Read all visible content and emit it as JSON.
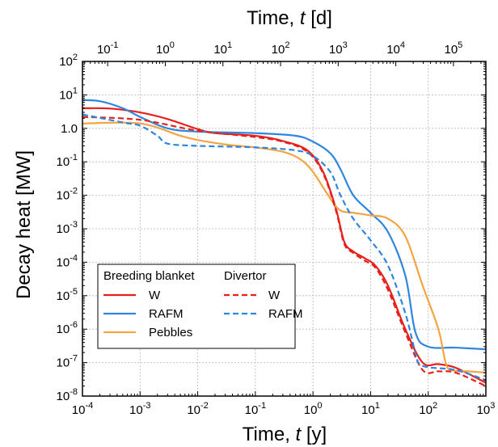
{
  "chart_data": {
    "type": "line",
    "xlabel": "Time, t [y]",
    "xlabel_prefix": "Time, ",
    "xlabel_var": "t",
    "xlabel_unit": " [y]",
    "x2label": "Time, t [d]",
    "x2label_prefix": "Time, ",
    "x2label_var": "t",
    "x2label_unit": " [d]",
    "ylabel": "Decay heat [MW]",
    "xscale": "log",
    "yscale": "log",
    "xlim": [
      0.0001,
      1000
    ],
    "ylim": [
      1e-08,
      100
    ],
    "grid": true,
    "legend_placement": "lower-left",
    "x_ticks": [
      {
        "value": 0.0001,
        "base": "10",
        "exp": "-4"
      },
      {
        "value": 0.001,
        "base": "10",
        "exp": "-3"
      },
      {
        "value": 0.01,
        "base": "10",
        "exp": "-2"
      },
      {
        "value": 0.1,
        "base": "10",
        "exp": "-1"
      },
      {
        "value": 1,
        "base": "10",
        "exp": "0"
      },
      {
        "value": 10,
        "base": "10",
        "exp": "1"
      },
      {
        "value": 100,
        "base": "10",
        "exp": "2"
      },
      {
        "value": 1000,
        "base": "10",
        "exp": "3"
      }
    ],
    "x2_ticks": [
      {
        "value_days": 0.1,
        "base": "10",
        "exp": "-1"
      },
      {
        "value_days": 1,
        "base": "10",
        "exp": "0"
      },
      {
        "value_days": 10,
        "base": "10",
        "exp": "1"
      },
      {
        "value_days": 100,
        "base": "10",
        "exp": "2"
      },
      {
        "value_days": 1000,
        "base": "10",
        "exp": "3"
      },
      {
        "value_days": 10000,
        "base": "10",
        "exp": "4"
      },
      {
        "value_days": 100000,
        "base": "10",
        "exp": "5"
      }
    ],
    "y_ticks": [
      {
        "value": 100,
        "base": "10",
        "exp": "2"
      },
      {
        "value": 10,
        "base": "10",
        "exp": "1"
      },
      {
        "value": 1,
        "base": "1.0",
        "exp": ""
      },
      {
        "value": 0.1,
        "base": "10",
        "exp": "-1"
      },
      {
        "value": 0.01,
        "base": "10",
        "exp": "-2"
      },
      {
        "value": 0.001,
        "base": "10",
        "exp": "-3"
      },
      {
        "value": 0.0001,
        "base": "10",
        "exp": "-4"
      },
      {
        "value": 1e-05,
        "base": "10",
        "exp": "-5"
      },
      {
        "value": 1e-06,
        "base": "10",
        "exp": "-6"
      },
      {
        "value": 1e-07,
        "base": "10",
        "exp": "-7"
      },
      {
        "value": 1e-08,
        "base": "10",
        "exp": "-8"
      }
    ],
    "legend": {
      "group1_title": "Breeding blanket",
      "group2_title": "Divertor"
    },
    "series": [
      {
        "name": "W",
        "group": "Breeding blanket",
        "color": "#e8201c",
        "dash": "solid",
        "x": [
          0.0001,
          0.0003,
          0.001,
          0.003,
          0.01,
          0.02,
          0.1,
          0.3,
          0.8,
          1.5,
          2.5,
          3.5,
          5,
          8,
          12,
          20,
          40,
          80,
          150,
          300,
          1000
        ],
        "y": [
          4,
          3.9,
          3,
          1.9,
          0.95,
          0.72,
          0.6,
          0.42,
          0.22,
          0.05,
          0.004,
          0.0004,
          0.00021,
          0.00013,
          8e-05,
          2e-05,
          1e-06,
          1e-07,
          9e-08,
          7e-08,
          2.5e-08
        ]
      },
      {
        "name": "RAFM",
        "group": "Breeding blanket",
        "color": "#2e86de",
        "dash": "solid",
        "x": [
          0.0001,
          0.0002,
          0.0005,
          0.001,
          0.003,
          0.01,
          0.1,
          0.5,
          1,
          2,
          3,
          5,
          10,
          20,
          40,
          60,
          100,
          300,
          1000
        ],
        "y": [
          7,
          6.5,
          4,
          2.2,
          1,
          0.8,
          0.72,
          0.6,
          0.4,
          0.18,
          0.06,
          0.01,
          0.003,
          0.0008,
          4e-05,
          8e-07,
          3e-07,
          2.8e-07,
          2.5e-07
        ]
      },
      {
        "name": "Pebbles",
        "group": "Breeding blanket",
        "color": "#f5a442",
        "dash": "solid",
        "x": [
          0.0001,
          0.001,
          0.005,
          0.01,
          0.03,
          0.1,
          0.3,
          0.6,
          1,
          2,
          3,
          5,
          10,
          20,
          40,
          80,
          150,
          200,
          250,
          500,
          1000
        ],
        "y": [
          1.4,
          1.4,
          0.6,
          0.45,
          0.33,
          0.27,
          0.2,
          0.12,
          0.05,
          0.008,
          0.0035,
          0.003,
          0.0025,
          0.002,
          0.0006,
          2e-05,
          1e-06,
          1e-07,
          6e-08,
          5.5e-08,
          5e-08
        ]
      },
      {
        "name": "W",
        "group": "Divertor",
        "color": "#e8201c",
        "dash": "dashed",
        "x": [
          0.0001,
          0.001,
          0.01,
          0.1,
          0.3,
          0.8,
          1.5,
          2.5,
          3.5,
          5,
          8,
          12,
          20,
          40,
          80,
          150,
          300,
          1000
        ],
        "y": [
          2.2,
          1.8,
          0.85,
          0.55,
          0.4,
          0.2,
          0.045,
          0.0035,
          0.00035,
          0.00019,
          0.00011,
          7e-05,
          1.5e-05,
          8e-07,
          6e-08,
          5.5e-08,
          5e-08,
          2e-08
        ]
      },
      {
        "name": "RAFM",
        "group": "Divertor",
        "color": "#2e86de",
        "dash": "dashed",
        "x": [
          0.0001,
          0.0005,
          0.001,
          0.002,
          0.003,
          0.01,
          0.1,
          0.5,
          1,
          2,
          3,
          5,
          10,
          20,
          40,
          60,
          80,
          300,
          1000
        ],
        "y": [
          2.6,
          1.5,
          1.2,
          0.6,
          0.35,
          0.3,
          0.27,
          0.22,
          0.15,
          0.05,
          0.01,
          0.002,
          0.00045,
          8e-05,
          3e-06,
          2e-07,
          8e-08,
          6e-08,
          3e-08
        ]
      }
    ]
  }
}
